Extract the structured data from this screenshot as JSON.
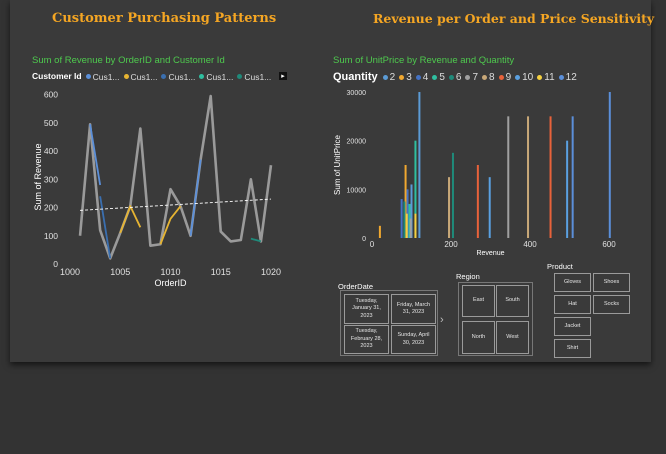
{
  "headings": {
    "left": "Customer Purchasing Patterns",
    "right": "Revenue per Order and Price Sensitivity"
  },
  "chart_data": [
    {
      "type": "line",
      "title": "Sum of Revenue by OrderID and Customer Id",
      "xlabel": "OrderID",
      "ylabel": "Sum of Revenue",
      "legend_title": "Customer Id",
      "legend_placement": "top-left",
      "legend_items": [
        "Cus1...",
        "Cus1...",
        "Cus1...",
        "Cus1...",
        "Cus1..."
      ],
      "legend_colors": [
        "#5b8fd9",
        "#e6b432",
        "#3a6fb0",
        "#2fbfa0",
        "#1f8a7a"
      ],
      "x_ticks": [
        1000,
        1005,
        1010,
        1015,
        1020
      ],
      "y_ticks": [
        0,
        100,
        200,
        300,
        400,
        500,
        600
      ],
      "xlim": [
        1000,
        1020.5
      ],
      "ylim": [
        0,
        620
      ],
      "grid": false,
      "series": [
        {
          "color": "#9a9a9a",
          "x": [
            1001,
            1002,
            1003,
            1004,
            1005,
            1006,
            1007,
            1008,
            1009,
            1010,
            1011,
            1012,
            1013,
            1014,
            1015,
            1016,
            1017,
            1018,
            1019,
            1020
          ],
          "values": [
            100,
            495,
            120,
            20,
            110,
            205,
            480,
            65,
            70,
            265,
            205,
            100,
            370,
            595,
            115,
            80,
            85,
            300,
            80,
            350
          ]
        },
        {
          "color": "#5b8fd9",
          "x": [
            1002,
            1003
          ],
          "values": [
            495,
            280
          ]
        },
        {
          "color": "#3a6fb0",
          "x": [
            1003,
            1004
          ],
          "values": [
            240,
            20
          ]
        },
        {
          "color": "#e6b432",
          "x": [
            1005,
            1006,
            1007
          ],
          "values": [
            110,
            205,
            130
          ]
        },
        {
          "color": "#e6b432",
          "x": [
            1009,
            1010,
            1011
          ],
          "values": [
            70,
            160,
            205
          ]
        },
        {
          "color": "#5b8fd9",
          "x": [
            1012,
            1013
          ],
          "values": [
            100,
            370
          ]
        },
        {
          "color": "#1f8a7a",
          "x": [
            1018,
            1019
          ],
          "values": [
            90,
            80
          ]
        }
      ],
      "trendline": {
        "x": [
          1001,
          1020
        ],
        "values": [
          190,
          230
        ],
        "style": "dashed",
        "color": "#ffffff"
      }
    },
    {
      "type": "bar",
      "title": "Sum of UnitPrice by Revenue and Quantity",
      "xlabel": "Revenue",
      "ylabel": "Sum of UnitPrice",
      "legend_title": "Quantity",
      "legend_placement": "top-left",
      "x_ticks": [
        0,
        200,
        400,
        600
      ],
      "y_ticks": [
        0,
        10000,
        20000,
        30000
      ],
      "xlim": [
        0,
        640
      ],
      "ylim": [
        0,
        30500
      ],
      "grid": false,
      "series": [
        {
          "name": "2",
          "color": "#5b9bd5",
          "x": [
            100,
            120
          ],
          "values": [
            11000,
            30000
          ]
        },
        {
          "name": "3",
          "color": "#f0a830",
          "x": [
            20,
            85
          ],
          "values": [
            2500,
            15000
          ]
        },
        {
          "name": "4",
          "color": "#4472c4",
          "x": [
            75,
            90
          ],
          "values": [
            8000,
            10000
          ]
        },
        {
          "name": "5",
          "color": "#2fbfa0",
          "x": [
            95,
            110
          ],
          "values": [
            7000,
            20000
          ]
        },
        {
          "name": "6",
          "color": "#1f8a7a",
          "x": [
            82,
            205
          ],
          "values": [
            7500,
            17500
          ]
        },
        {
          "name": "7",
          "color": "#a0a0a0",
          "x": [
            98,
            345
          ],
          "values": [
            4000,
            25000
          ]
        },
        {
          "name": "8",
          "color": "#c8a878",
          "x": [
            195,
            395
          ],
          "values": [
            12500,
            25000
          ]
        },
        {
          "name": "9",
          "color": "#e8623a",
          "x": [
            268,
            452
          ],
          "values": [
            15000,
            25000
          ]
        },
        {
          "name": "10",
          "color": "#5aa0e0",
          "x": [
            298,
            494
          ],
          "values": [
            12500,
            20000
          ]
        },
        {
          "name": "11",
          "color": "#f5d040",
          "x": [
            88,
            110
          ],
          "values": [
            5000,
            5000
          ]
        },
        {
          "name": "12",
          "color": "#5b8fd9",
          "x": [
            508,
            602
          ],
          "values": [
            25000,
            30000
          ]
        }
      ]
    }
  ],
  "slicers": {
    "orderdate": {
      "title": "OrderDate",
      "tiles": [
        [
          "Tuesday,",
          "January 31,",
          "2023"
        ],
        [
          "Friday, March",
          "31, 2023"
        ],
        [
          "Tuesday,",
          "February 28,",
          "2023"
        ],
        [
          "Sunday, April",
          "30, 2023"
        ]
      ],
      "next_symbol": "›"
    },
    "region": {
      "title": "Region",
      "tiles": [
        "East",
        "South",
        "North",
        "West"
      ]
    },
    "product": {
      "title": "Product",
      "tiles": [
        "Gloves",
        "Shoes",
        "Hat",
        "Socks",
        "Jacket",
        "Shirt"
      ]
    }
  }
}
